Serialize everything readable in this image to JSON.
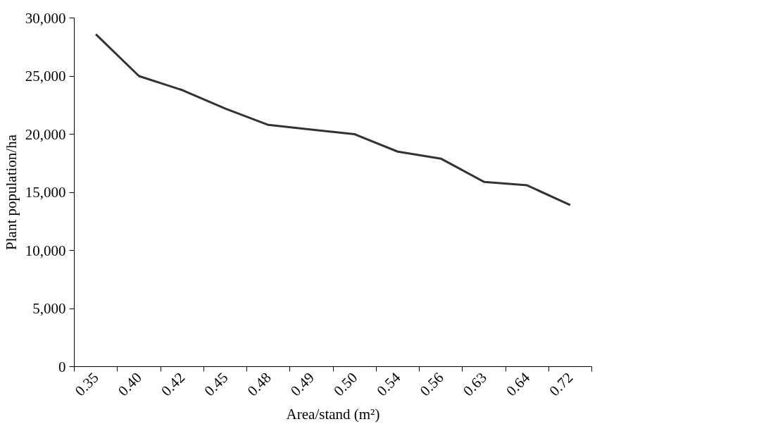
{
  "chart_data": {
    "type": "line",
    "xlabel": "Area/stand (m²)",
    "ylabel": "Plant population/ha",
    "categories": [
      "0.35",
      "0.40",
      "0.42",
      "0.45",
      "0.48",
      "0.49",
      "0.50",
      "0.54",
      "0.56",
      "0.63",
      "0.64",
      "0.72"
    ],
    "series": [
      {
        "color": "#333333",
        "values": [
          28600,
          25000,
          23800,
          22200,
          20800,
          20400,
          20000,
          18500,
          17900,
          15900,
          15600,
          13900
        ]
      }
    ],
    "ylim": [
      0,
      30000
    ],
    "yticks": [
      {
        "value": 0,
        "label": "0"
      },
      {
        "value": 5000,
        "label": "5,000"
      },
      {
        "value": 10000,
        "label": "10,000"
      },
      {
        "value": 15000,
        "label": "15,000"
      },
      {
        "value": 20000,
        "label": "20,000"
      },
      {
        "value": 25000,
        "label": "25,000"
      },
      {
        "value": 30000,
        "label": "30,000"
      }
    ],
    "grid": false,
    "marker": "none",
    "line_style": "solid"
  }
}
